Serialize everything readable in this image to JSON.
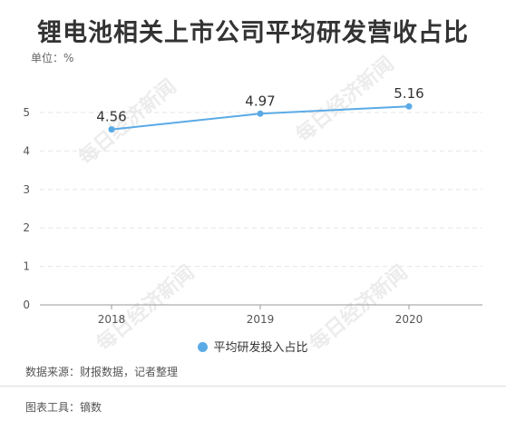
{
  "title": "锂电池相关上市公司平均研发营收占比",
  "unit_label": "单位：%",
  "source": "数据来源：财报数据，记者整理",
  "tool": "图表工具：镝数",
  "watermark": "每日经济新闻",
  "colors": {
    "line": "#5aaae6",
    "grid": "#e6e6e6",
    "axis": "#999999",
    "text": "#333333"
  },
  "chart_data": {
    "type": "line",
    "categories": [
      "2018",
      "2019",
      "2020"
    ],
    "series": [
      {
        "name": "平均研发投入占比",
        "values": [
          4.56,
          4.97,
          5.16
        ],
        "labels": [
          "4.56",
          "4.97",
          "5.16"
        ]
      }
    ],
    "ylim": [
      0,
      5
    ],
    "yticks": [
      "0",
      "1",
      "2",
      "3",
      "4",
      "5"
    ],
    "grid": true,
    "legend_position": "bottom"
  }
}
